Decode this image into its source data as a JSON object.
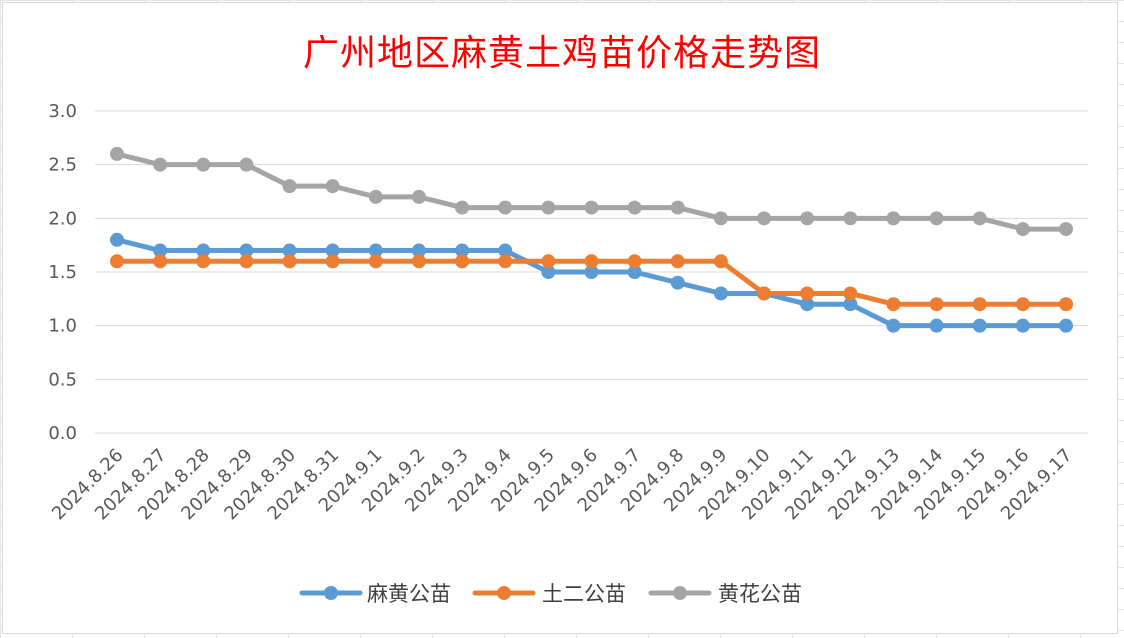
{
  "chart_data": {
    "type": "line",
    "title": "广州地区麻黄土鸡苗价格走势图",
    "xlabel": "",
    "ylabel": "",
    "ylim": [
      0,
      3.0
    ],
    "yticks": [
      "0.0",
      "0.5",
      "1.0",
      "1.5",
      "2.0",
      "2.5",
      "3.0"
    ],
    "grid": true,
    "legend_position": "bottom",
    "categories": [
      "2024.8.26",
      "2024.8.27",
      "2024.8.28",
      "2024.8.29",
      "2024.8.30",
      "2024.8.31",
      "2024.9.1",
      "2024.9.2",
      "2024.9.3",
      "2024.9.4",
      "2024.9.5",
      "2024.9.6",
      "2024.9.7",
      "2024.9.8",
      "2024.9.9",
      "2024.9.10",
      "2024.9.11",
      "2024.9.12",
      "2024.9.13",
      "2024.9.14",
      "2024.9.15",
      "2024.9.16",
      "2024.9.17"
    ],
    "series": [
      {
        "name": "麻黄公苗",
        "color": "#5b9bd5",
        "values": [
          1.8,
          1.7,
          1.7,
          1.7,
          1.7,
          1.7,
          1.7,
          1.7,
          1.7,
          1.7,
          1.5,
          1.5,
          1.5,
          1.4,
          1.3,
          1.3,
          1.2,
          1.2,
          1.0,
          1.0,
          1.0,
          1.0,
          1.0
        ]
      },
      {
        "name": "土二公苗",
        "color": "#ed7d31",
        "values": [
          1.6,
          1.6,
          1.6,
          1.6,
          1.6,
          1.6,
          1.6,
          1.6,
          1.6,
          1.6,
          1.6,
          1.6,
          1.6,
          1.6,
          1.6,
          1.3,
          1.3,
          1.3,
          1.2,
          1.2,
          1.2,
          1.2,
          1.2
        ]
      },
      {
        "name": "黄花公苗",
        "color": "#a5a5a5",
        "values": [
          2.6,
          2.5,
          2.5,
          2.5,
          2.3,
          2.3,
          2.2,
          2.2,
          2.1,
          2.1,
          2.1,
          2.1,
          2.1,
          2.1,
          2.0,
          2.0,
          2.0,
          2.0,
          2.0,
          2.0,
          2.0,
          1.9,
          1.9
        ]
      }
    ]
  }
}
